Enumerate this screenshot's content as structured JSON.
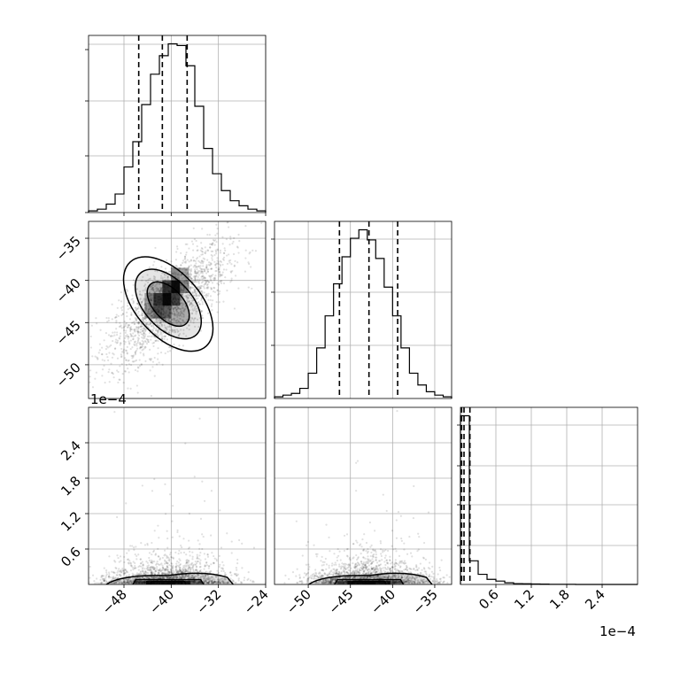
{
  "chart_data": [
    {
      "type": "histogram",
      "panel": "marginal-x",
      "xlim": [
        -54,
        -24
      ],
      "xticks": [
        "-48",
        "-40",
        "-32",
        "-24"
      ],
      "bin_edges": [
        -54,
        -52.5,
        -51,
        -49.5,
        -48,
        -46.5,
        -45,
        -43.5,
        -42,
        -40.5,
        -39,
        -37.5,
        -36,
        -34.5,
        -33,
        -31.5,
        -30,
        -28.5,
        -27,
        -25.5,
        -24
      ],
      "counts": [
        0.01,
        0.02,
        0.05,
        0.11,
        0.27,
        0.42,
        0.64,
        0.82,
        0.93,
        1.0,
        0.99,
        0.87,
        0.63,
        0.38,
        0.23,
        0.13,
        0.07,
        0.04,
        0.02,
        0.01
      ],
      "quantiles": [
        -45.5,
        -41.5,
        -37.3
      ]
    },
    {
      "type": "scatter-density",
      "panel": "x-vs-y",
      "xlim": [
        -54,
        -24
      ],
      "ylim": [
        -54,
        -33
      ],
      "yticks": [
        "-35",
        "-40",
        "-45",
        "-50"
      ],
      "center": [
        -40.5,
        -42.8
      ],
      "offset_text": "1e−4"
    },
    {
      "type": "histogram",
      "panel": "marginal-y",
      "xlim": [
        -54,
        -33
      ],
      "bin_edges": [
        -54,
        -53,
        -52,
        -51,
        -50,
        -49,
        -48,
        -47,
        -46,
        -45,
        -44,
        -43,
        -42,
        -41,
        -40,
        -39,
        -38,
        -37,
        -36,
        -35,
        -34,
        -33
      ],
      "counts": [
        0.01,
        0.02,
        0.03,
        0.06,
        0.15,
        0.3,
        0.49,
        0.68,
        0.84,
        0.95,
        1.0,
        0.94,
        0.83,
        0.66,
        0.49,
        0.3,
        0.15,
        0.08,
        0.04,
        0.02,
        0.01
      ],
      "quantiles": [
        -46.3,
        -42.8,
        -39.4
      ]
    },
    {
      "type": "scatter-density",
      "panel": "x-vs-z",
      "xlim": [
        -54,
        -24
      ],
      "ylim": [
        0,
        3.0
      ],
      "xticks": [
        "-48",
        "-40",
        "-32",
        "-24"
      ],
      "yticks": [
        "0.6",
        "1.2",
        "1.8",
        "2.4"
      ],
      "center": [
        -40.5,
        0.05
      ]
    },
    {
      "type": "scatter-density",
      "panel": "y-vs-z",
      "xlim": [
        -54,
        -33
      ],
      "ylim": [
        0,
        3.0
      ],
      "xticks": [
        "-50",
        "-45",
        "-40",
        "-35"
      ],
      "center": [
        -42.8,
        0.05
      ]
    },
    {
      "type": "histogram",
      "panel": "marginal-z",
      "xlim": [
        0,
        3.0
      ],
      "xticks": [
        "0.6",
        "1.2",
        "1.8",
        "2.4"
      ],
      "offset_text": "1e−4",
      "bin_edges": [
        0,
        0.15,
        0.3,
        0.45,
        0.6,
        0.75,
        0.9,
        1.05,
        1.2,
        1.35,
        1.5,
        1.65,
        1.8,
        1.95,
        2.1,
        2.25,
        2.4,
        2.55,
        2.7,
        2.85,
        3.0
      ],
      "counts": [
        1.0,
        0.14,
        0.06,
        0.03,
        0.02,
        0.01,
        0.005,
        0.004,
        0.003,
        0.002,
        0.001,
        0.001,
        0.001,
        0.0,
        0.0,
        0.0,
        0.0,
        0.0,
        0.0,
        0.0
      ],
      "quantiles": [
        0.02,
        0.06,
        0.16
      ]
    }
  ]
}
